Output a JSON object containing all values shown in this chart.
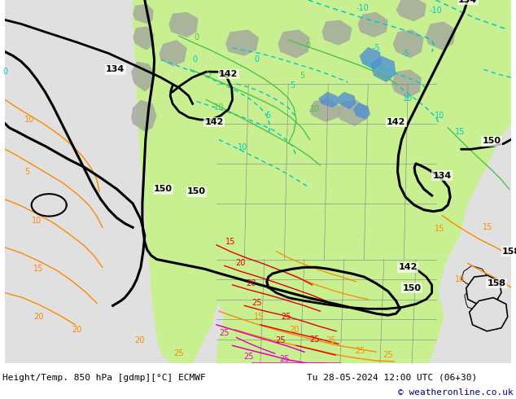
{
  "title": "Height/Temp. 850 hPa [gdmp][°C] ECMWF",
  "datetime_label": "Tu 28-05-2024 12:00 UTC (06+30)",
  "copyright": "© weatheronline.co.uk",
  "bg_color": "#ffffff",
  "text_color": "#000000",
  "copyright_color": "#00008b",
  "bottom_bar_color": "#c8c8c8",
  "fig_width": 6.34,
  "fig_height": 4.9,
  "dpi": 100,
  "ocean_color": "#e0e0e0",
  "land_green_light": "#c8f090",
  "land_green_mid": "#b0e060",
  "gray_terrain": "#a0a0a0",
  "contour_black": "#000000",
  "contour_cyan": "#00c8c8",
  "contour_green": "#50c050",
  "contour_orange": "#ff8800",
  "contour_red": "#e00000",
  "contour_pink": "#e000c0",
  "contour_blue": "#0000e0",
  "font_size_bottom": 8,
  "font_size_copyright": 8,
  "font_size_label": 7
}
